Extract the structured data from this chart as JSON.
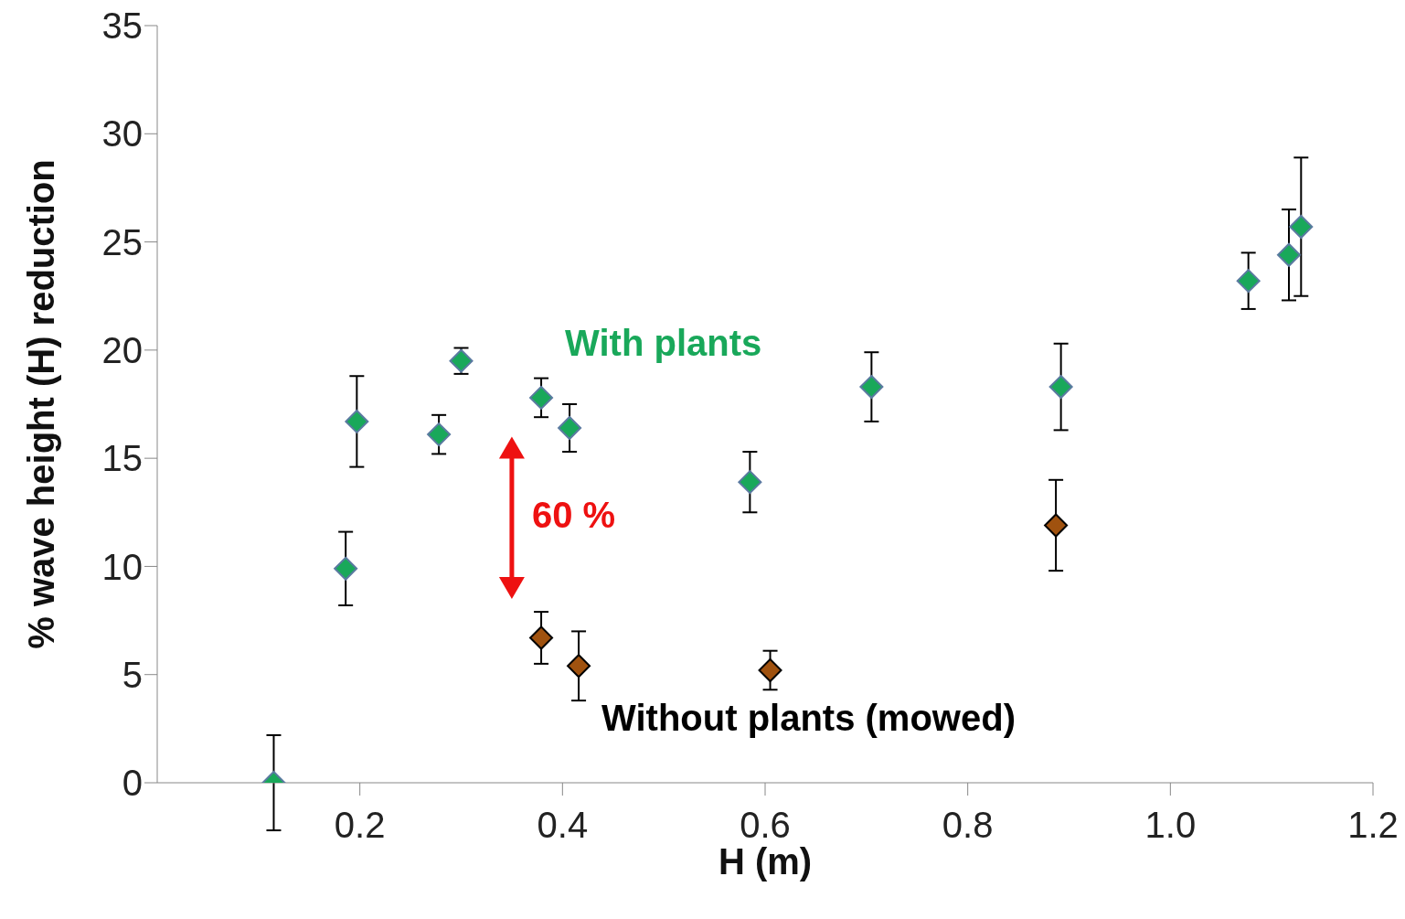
{
  "chart_data": {
    "type": "scatter",
    "xlabel": "H (m)",
    "ylabel": "% wave height (H) reduction",
    "xlim": [
      0,
      1.2
    ],
    "xticks": [
      0.2,
      0.4,
      0.6,
      0.8,
      {
        "value": 1,
        "label": "1.0"
      },
      1.2
    ],
    "ylim": [
      0,
      35
    ],
    "yticks": [
      0,
      5,
      10,
      15,
      20,
      25,
      30,
      35
    ],
    "marker": "diamond",
    "annotations": [
      "60 %"
    ],
    "series": [
      {
        "name": "With plants",
        "color": "#19a85a",
        "x": [
          0.115,
          0.186,
          0.197,
          0.278,
          0.3,
          0.379,
          0.407,
          0.585,
          0.705,
          0.892,
          1.077,
          1.117,
          1.129
        ],
        "values": [
          0,
          9.9,
          16.7,
          16.1,
          19.5,
          17.8,
          16.4,
          13.9,
          18.3,
          18.3,
          23.2,
          24.4,
          25.7
        ],
        "errors": [
          2.2,
          1.7,
          2.1,
          0.9,
          0.6,
          0.9,
          1.1,
          1.4,
          1.6,
          2,
          1.3,
          2.1,
          3.2
        ]
      },
      {
        "name": "Without plants (mowed)",
        "color": "#a0520f",
        "x": [
          0.379,
          0.416,
          0.605,
          0.887
        ],
        "values": [
          6.7,
          5.4,
          5.2,
          11.9
        ],
        "errors": [
          1.2,
          1.6,
          0.9,
          2.1
        ]
      }
    ]
  }
}
